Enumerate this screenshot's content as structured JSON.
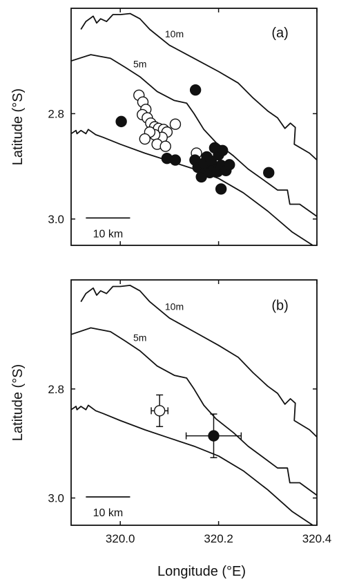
{
  "chart_data": [
    {
      "type": "scatter",
      "panel_label": "(a)",
      "xlim": [
        319.9,
        320.4
      ],
      "ylim": [
        3.05,
        2.6
      ],
      "ylabel": "Latitude (°S)",
      "xlabel": "",
      "y_ticks": [
        2.8,
        3.0
      ],
      "x_ticks": [],
      "contour_labels": [
        "10m",
        "5m"
      ],
      "scale_bar_label": "10 km",
      "series": [
        {
          "marker": "open-circle",
          "points": [
            [
              320.038,
              2.765
            ],
            [
              320.046,
              2.778
            ],
            [
              320.052,
              2.792
            ],
            [
              320.045,
              2.802
            ],
            [
              320.055,
              2.808
            ],
            [
              320.062,
              2.818
            ],
            [
              320.07,
              2.825
            ],
            [
              320.078,
              2.828
            ],
            [
              320.088,
              2.83
            ],
            [
              320.095,
              2.835
            ],
            [
              320.085,
              2.845
            ],
            [
              320.07,
              2.84
            ],
            [
              320.06,
              2.835
            ],
            [
              320.05,
              2.848
            ],
            [
              320.075,
              2.858
            ],
            [
              320.092,
              2.862
            ],
            [
              320.112,
              2.82
            ],
            [
              320.155,
              2.875
            ]
          ]
        },
        {
          "marker": "filled-circle",
          "points": [
            [
              320.002,
              2.815
            ],
            [
              320.153,
              2.755
            ],
            [
              320.302,
              2.912
            ],
            [
              320.095,
              2.885
            ],
            [
              320.112,
              2.888
            ],
            [
              320.152,
              2.888
            ],
            [
              320.158,
              2.902
            ],
            [
              320.165,
              2.92
            ],
            [
              320.175,
              2.905
            ],
            [
              320.182,
              2.912
            ],
            [
              320.19,
              2.9
            ],
            [
              320.198,
              2.91
            ],
            [
              320.205,
              2.898
            ],
            [
              320.215,
              2.908
            ],
            [
              320.222,
              2.897
            ],
            [
              320.2,
              2.878
            ],
            [
              320.208,
              2.87
            ],
            [
              320.192,
              2.865
            ],
            [
              320.176,
              2.882
            ],
            [
              320.168,
              2.895
            ],
            [
              320.185,
              2.89
            ],
            [
              320.205,
              2.943
            ]
          ]
        }
      ]
    },
    {
      "type": "scatter",
      "panel_label": "(b)",
      "xlim": [
        319.9,
        320.4
      ],
      "ylim": [
        3.05,
        2.6
      ],
      "ylabel": "Latitude (°S)",
      "xlabel": "Longitude (°E)",
      "y_ticks": [
        2.8,
        3.0
      ],
      "x_ticks": [
        320.0,
        320.2,
        320.4
      ],
      "x_tick_labels": [
        "320.0",
        "320.2",
        "320.4"
      ],
      "contour_labels": [
        "10m",
        "5m"
      ],
      "scale_bar_label": "10 km",
      "series": [
        {
          "marker": "open-circle",
          "points": [
            [
              320.08,
              2.84
            ]
          ],
          "x_err": [
            0.017
          ],
          "y_err": [
            0.029
          ]
        },
        {
          "marker": "filled-circle",
          "points": [
            [
              320.19,
              2.886
            ]
          ],
          "x_err": [
            0.056
          ],
          "y_err": [
            0.04
          ]
        }
      ]
    }
  ]
}
